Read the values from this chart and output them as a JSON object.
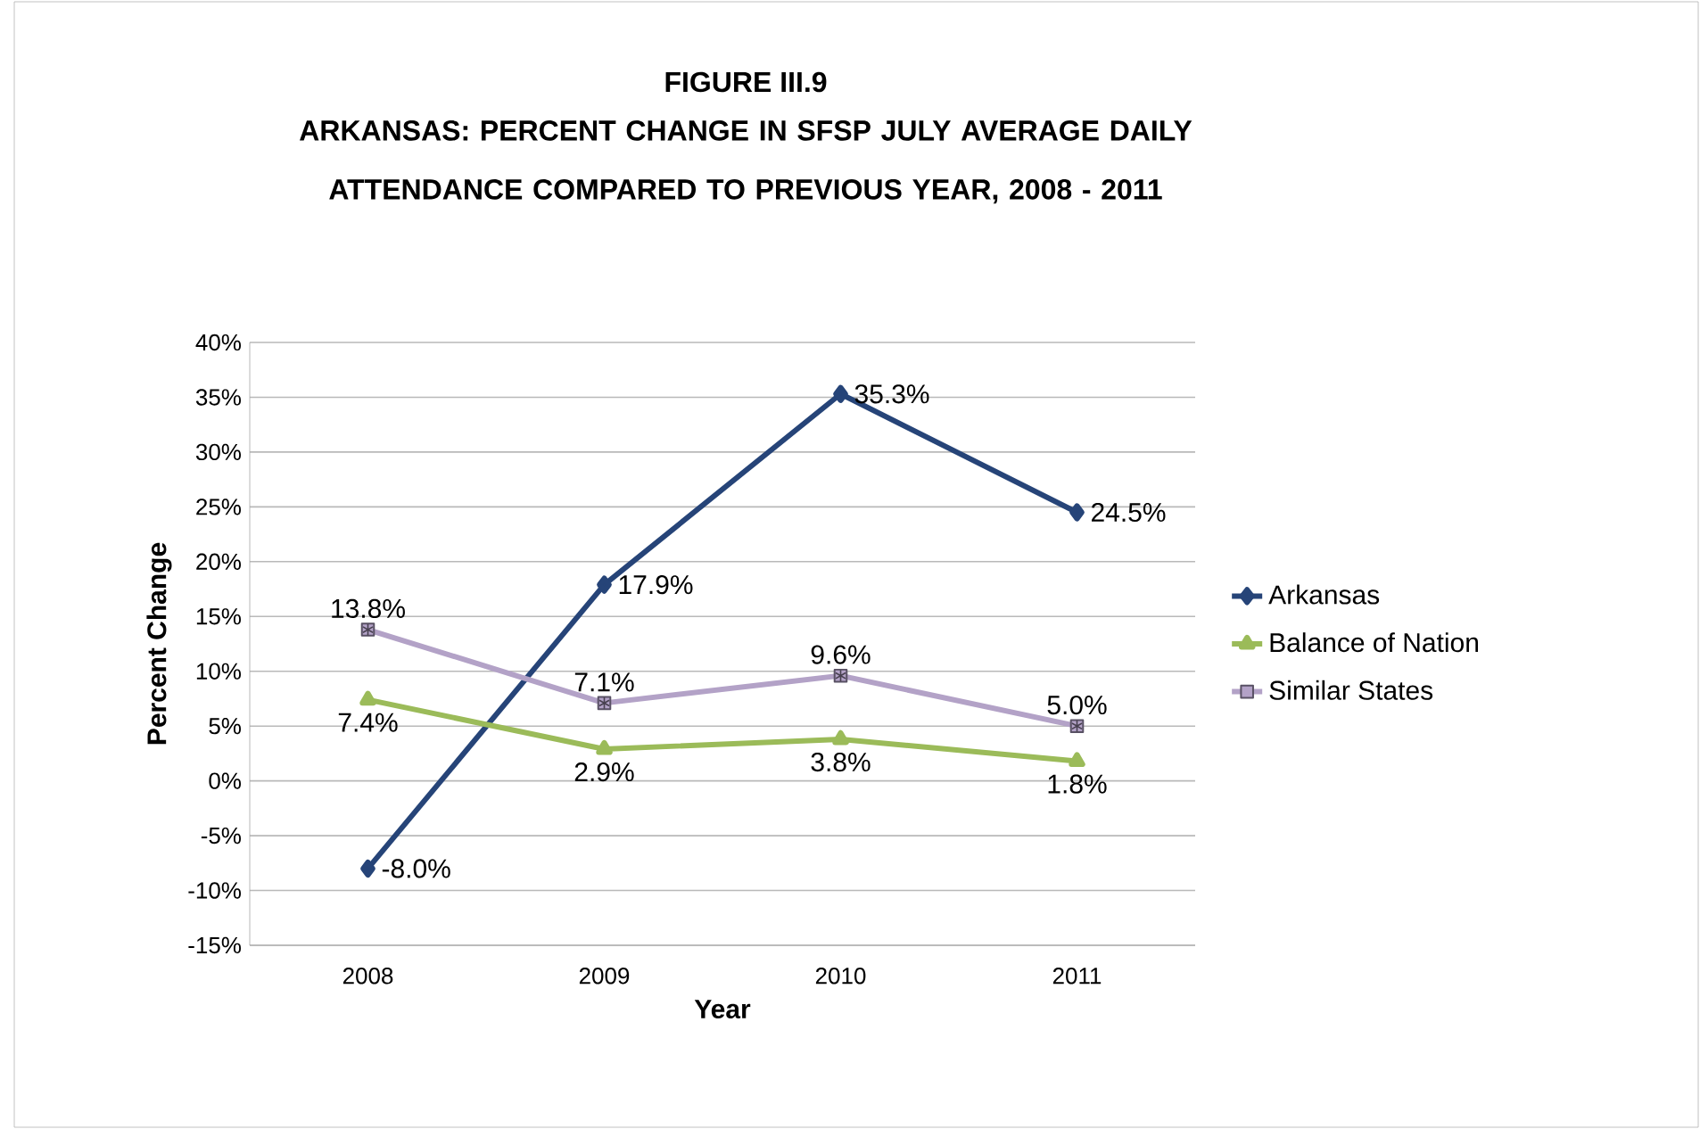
{
  "chart_data": {
    "type": "line",
    "title": "FIGURE III.9",
    "subtitle": "ARKANSAS: PERCENT CHANGE IN SFSP JULY AVERAGE DAILY ATTENDANCE COMPARED TO PREVIOUS YEAR, 2008 - 2011",
    "xlabel": "Year",
    "ylabel": "Percent Change",
    "categories": [
      "2008",
      "2009",
      "2010",
      "2011"
    ],
    "series": [
      {
        "name": "Arkansas",
        "color": "#264478",
        "marker": "diamond",
        "values": [
          -8.0,
          17.9,
          35.3,
          24.5
        ],
        "value_labels": [
          "-8.0%",
          "17.9%",
          "35.3%",
          "24.5%"
        ]
      },
      {
        "name": "Balance of Nation",
        "color": "#9bbb59",
        "marker": "triangle",
        "values": [
          7.4,
          2.9,
          3.8,
          1.8
        ],
        "value_labels": [
          "7.4%",
          "2.9%",
          "3.8%",
          "1.8%"
        ]
      },
      {
        "name": "Similar States",
        "color": "#b3a2c7",
        "marker": "square",
        "values": [
          13.8,
          7.1,
          9.6,
          5.0
        ],
        "value_labels": [
          "13.8%",
          "7.1%",
          "9.6%",
          "5.0%"
        ]
      }
    ],
    "ylim": [
      -15,
      40
    ],
    "yticks": [
      {
        "value": -15,
        "label": "-15%"
      },
      {
        "value": -10,
        "label": "-10%"
      },
      {
        "value": -5,
        "label": "-5%"
      },
      {
        "value": 0,
        "label": "0%"
      },
      {
        "value": 5,
        "label": "5%"
      },
      {
        "value": 10,
        "label": "10%"
      },
      {
        "value": 15,
        "label": "15%"
      },
      {
        "value": 20,
        "label": "20%"
      },
      {
        "value": 25,
        "label": "25%"
      },
      {
        "value": 30,
        "label": "30%"
      },
      {
        "value": 35,
        "label": "35%"
      },
      {
        "value": 40,
        "label": "40%"
      }
    ],
    "grid": "y",
    "legend": "right",
    "line_style": "solid"
  }
}
